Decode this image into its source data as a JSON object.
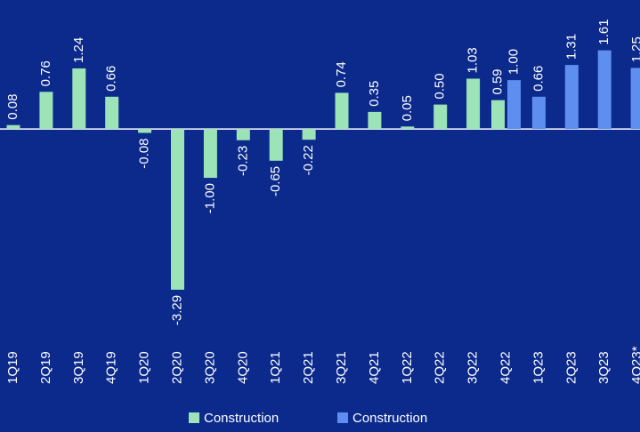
{
  "chart_data": {
    "type": "bar",
    "categories": [
      "1Q19",
      "2Q19",
      "3Q19",
      "4Q19",
      "1Q20",
      "2Q20",
      "3Q20",
      "4Q20",
      "1Q21",
      "2Q21",
      "3Q21",
      "4Q21",
      "1Q22",
      "2Q22",
      "3Q22",
      "4Q22",
      "1Q23",
      "2Q23",
      "3Q23",
      "4Q23*"
    ],
    "series": [
      {
        "name": "Construction",
        "color": "#9de3b8",
        "values": [
          0.08,
          0.76,
          1.24,
          0.66,
          -0.08,
          -3.29,
          -1.0,
          -0.23,
          -0.65,
          -0.22,
          0.74,
          0.35,
          0.05,
          0.5,
          1.03,
          0.59,
          null,
          null,
          null,
          null
        ],
        "value_labels": [
          "0.08",
          "0.76",
          "1.24",
          "0.66",
          "-0.08",
          "-3.29",
          "-1.00",
          "-0.23",
          "-0.65",
          "-0.22",
          "0.74",
          "0.35",
          "0.05",
          "0.50",
          "1.03",
          "0.59",
          null,
          null,
          null,
          null
        ]
      },
      {
        "name": "Construction",
        "color": "#5e8ff0",
        "values": [
          null,
          null,
          null,
          null,
          null,
          null,
          null,
          null,
          null,
          null,
          null,
          null,
          null,
          null,
          null,
          1.0,
          0.66,
          1.31,
          1.61,
          1.25
        ],
        "value_labels": [
          null,
          null,
          null,
          null,
          null,
          null,
          null,
          null,
          null,
          null,
          null,
          null,
          null,
          null,
          null,
          "1.00",
          "0.66",
          "1.31",
          "1.61",
          "1.25"
        ]
      }
    ],
    "ylim": [
      -3.91,
      2.64
    ]
  }
}
